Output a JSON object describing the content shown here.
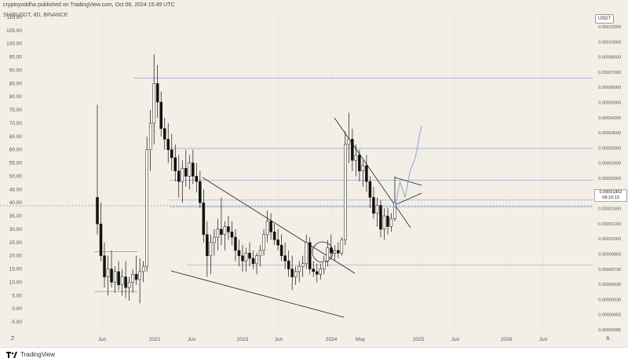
{
  "header": {
    "attribution": "cryptoyoddha published on TradingView.com, Oct 06, 2024 15:49 UTC",
    "symbol": "SHIBUSDT, 8D, BINANCE"
  },
  "currency": "USDT",
  "price_tag": {
    "price": "0.00001862",
    "countdown": "08:10:13"
  },
  "footer": {
    "brand": "TradingView"
  },
  "icons": {
    "left_scale": "Z",
    "right_scale": "A"
  },
  "chart_data": {
    "type": "candlestick",
    "left_axis_ticks": [
      "110.00",
      "105.00",
      "100.00",
      "95.00",
      "90.00",
      "85.00",
      "80.00",
      "75.00",
      "70.00",
      "65.00",
      "60.00",
      "55.00",
      "50.00",
      "45.00",
      "40.00",
      "35.00",
      "30.00",
      "25.00",
      "20.00",
      "15.00",
      "10.00",
      "5.00",
      "0.00",
      "-5.00"
    ],
    "right_axis_ticks": [
      "0.00012000",
      "0.00010000",
      "0.00008500",
      "0.00007000",
      "0.00006000",
      "0.00005000",
      "0.00004200",
      "0.00003600",
      "0.00003000",
      "0.00002400",
      "0.00002000",
      "0.00001600",
      "0.00001400",
      "0.00001200",
      "0.00001000",
      "0.00000850",
      "0.00000730",
      "0.00000630",
      "0.00000530",
      "0.00000450",
      "0.00000385"
    ],
    "x_axis_ticks": [
      "Jun",
      "2022",
      "Jun",
      "2023",
      "Jun",
      "2024",
      "May",
      "2025",
      "Jun",
      "2026",
      "Jun"
    ],
    "scale": "log",
    "ylim_left": [
      -10,
      110
    ],
    "candles": [
      {
        "o": 42,
        "h": 77,
        "l": 28,
        "c": 32
      },
      {
        "o": 32,
        "h": 40,
        "l": 18,
        "c": 20
      },
      {
        "o": 20,
        "h": 25,
        "l": 8,
        "c": 12
      },
      {
        "o": 12,
        "h": 20,
        "l": 5,
        "c": 15
      },
      {
        "o": 15,
        "h": 22,
        "l": 8,
        "c": 10
      },
      {
        "o": 10,
        "h": 16,
        "l": 6,
        "c": 14
      },
      {
        "o": 14,
        "h": 18,
        "l": 7,
        "c": 9
      },
      {
        "o": 9,
        "h": 15,
        "l": 5,
        "c": 12
      },
      {
        "o": 12,
        "h": 18,
        "l": 4,
        "c": 8
      },
      {
        "o": 8,
        "h": 12,
        "l": 3,
        "c": 10
      },
      {
        "o": 10,
        "h": 15,
        "l": 6,
        "c": 13
      },
      {
        "o": 13,
        "h": 20,
        "l": 9,
        "c": 11
      },
      {
        "o": 11,
        "h": 19,
        "l": 2,
        "c": 14
      },
      {
        "o": 14,
        "h": 18,
        "l": 10,
        "c": 16
      },
      {
        "o": 16,
        "h": 65,
        "l": 14,
        "c": 60
      },
      {
        "o": 60,
        "h": 75,
        "l": 52,
        "c": 70
      },
      {
        "o": 70,
        "h": 96,
        "l": 62,
        "c": 85
      },
      {
        "o": 85,
        "h": 92,
        "l": 72,
        "c": 78
      },
      {
        "o": 78,
        "h": 82,
        "l": 65,
        "c": 68
      },
      {
        "o": 68,
        "h": 72,
        "l": 60,
        "c": 64
      },
      {
        "o": 64,
        "h": 70,
        "l": 55,
        "c": 60
      },
      {
        "o": 60,
        "h": 66,
        "l": 52,
        "c": 57
      },
      {
        "o": 57,
        "h": 62,
        "l": 48,
        "c": 52
      },
      {
        "o": 52,
        "h": 58,
        "l": 42,
        "c": 48
      },
      {
        "o": 48,
        "h": 56,
        "l": 40,
        "c": 53
      },
      {
        "o": 53,
        "h": 60,
        "l": 46,
        "c": 50
      },
      {
        "o": 50,
        "h": 58,
        "l": 45,
        "c": 55
      },
      {
        "o": 55,
        "h": 60,
        "l": 47,
        "c": 50
      },
      {
        "o": 50,
        "h": 55,
        "l": 44,
        "c": 48
      },
      {
        "o": 48,
        "h": 52,
        "l": 38,
        "c": 40
      },
      {
        "o": 40,
        "h": 45,
        "l": 25,
        "c": 28
      },
      {
        "o": 28,
        "h": 33,
        "l": 12,
        "c": 20
      },
      {
        "o": 20,
        "h": 28,
        "l": 13,
        "c": 25
      },
      {
        "o": 25,
        "h": 30,
        "l": 20,
        "c": 27
      },
      {
        "o": 27,
        "h": 34,
        "l": 22,
        "c": 30
      },
      {
        "o": 30,
        "h": 42,
        "l": 24,
        "c": 28
      },
      {
        "o": 28,
        "h": 33,
        "l": 22,
        "c": 31
      },
      {
        "o": 31,
        "h": 35,
        "l": 26,
        "c": 29
      },
      {
        "o": 29,
        "h": 33,
        "l": 24,
        "c": 27
      },
      {
        "o": 27,
        "h": 30,
        "l": 18,
        "c": 22
      },
      {
        "o": 22,
        "h": 26,
        "l": 16,
        "c": 20
      },
      {
        "o": 20,
        "h": 24,
        "l": 14,
        "c": 18
      },
      {
        "o": 18,
        "h": 23,
        "l": 14,
        "c": 21
      },
      {
        "o": 21,
        "h": 25,
        "l": 16,
        "c": 19
      },
      {
        "o": 19,
        "h": 22,
        "l": 15,
        "c": 17
      },
      {
        "o": 17,
        "h": 21,
        "l": 13,
        "c": 20
      },
      {
        "o": 20,
        "h": 24,
        "l": 16,
        "c": 22
      },
      {
        "o": 22,
        "h": 30,
        "l": 20,
        "c": 28
      },
      {
        "o": 28,
        "h": 37,
        "l": 25,
        "c": 33
      },
      {
        "o": 33,
        "h": 36,
        "l": 26,
        "c": 29
      },
      {
        "o": 29,
        "h": 32,
        "l": 24,
        "c": 26
      },
      {
        "o": 26,
        "h": 30,
        "l": 22,
        "c": 24
      },
      {
        "o": 24,
        "h": 28,
        "l": 18,
        "c": 20
      },
      {
        "o": 20,
        "h": 25,
        "l": 15,
        "c": 18
      },
      {
        "o": 18,
        "h": 22,
        "l": 12,
        "c": 15
      },
      {
        "o": 15,
        "h": 20,
        "l": 7,
        "c": 12
      },
      {
        "o": 12,
        "h": 16,
        "l": 9,
        "c": 14
      },
      {
        "o": 14,
        "h": 18,
        "l": 10,
        "c": 16
      },
      {
        "o": 16,
        "h": 20,
        "l": 12,
        "c": 17
      },
      {
        "o": 17,
        "h": 28,
        "l": 15,
        "c": 25
      },
      {
        "o": 25,
        "h": 27,
        "l": 13,
        "c": 15
      },
      {
        "o": 15,
        "h": 18,
        "l": 12,
        "c": 14
      },
      {
        "o": 14,
        "h": 17,
        "l": 10,
        "c": 13
      },
      {
        "o": 13,
        "h": 17,
        "l": 11,
        "c": 15
      },
      {
        "o": 15,
        "h": 20,
        "l": 13,
        "c": 18
      },
      {
        "o": 18,
        "h": 26,
        "l": 16,
        "c": 23
      },
      {
        "o": 23,
        "h": 28,
        "l": 19,
        "c": 21
      },
      {
        "o": 21,
        "h": 24,
        "l": 18,
        "c": 22
      },
      {
        "o": 22,
        "h": 25,
        "l": 19,
        "c": 21
      },
      {
        "o": 21,
        "h": 27,
        "l": 20,
        "c": 26
      },
      {
        "o": 26,
        "h": 67,
        "l": 24,
        "c": 62
      },
      {
        "o": 62,
        "h": 74,
        "l": 55,
        "c": 64
      },
      {
        "o": 64,
        "h": 68,
        "l": 52,
        "c": 56
      },
      {
        "o": 56,
        "h": 62,
        "l": 50,
        "c": 58
      },
      {
        "o": 58,
        "h": 60,
        "l": 48,
        "c": 52
      },
      {
        "o": 52,
        "h": 56,
        "l": 46,
        "c": 54
      },
      {
        "o": 54,
        "h": 58,
        "l": 44,
        "c": 48
      },
      {
        "o": 48,
        "h": 50,
        "l": 38,
        "c": 42
      },
      {
        "o": 42,
        "h": 46,
        "l": 34,
        "c": 36
      },
      {
        "o": 36,
        "h": 42,
        "l": 31,
        "c": 39
      },
      {
        "o": 39,
        "h": 41,
        "l": 27,
        "c": 30
      },
      {
        "o": 30,
        "h": 38,
        "l": 26,
        "c": 35
      },
      {
        "o": 35,
        "h": 38,
        "l": 28,
        "c": 31
      },
      {
        "o": 31,
        "h": 36,
        "l": 29,
        "c": 34
      },
      {
        "o": 34,
        "h": 50,
        "l": 33,
        "c": 40
      }
    ],
    "horizontal_levels": [
      87,
      60.5,
      48.5,
      41,
      38.5,
      16.5
    ],
    "projection": [
      [
        40,
        38
      ],
      [
        43,
        48
      ],
      [
        46,
        42
      ],
      [
        49,
        52
      ],
      [
        52,
        57
      ],
      [
        55,
        50
      ]
    ]
  }
}
